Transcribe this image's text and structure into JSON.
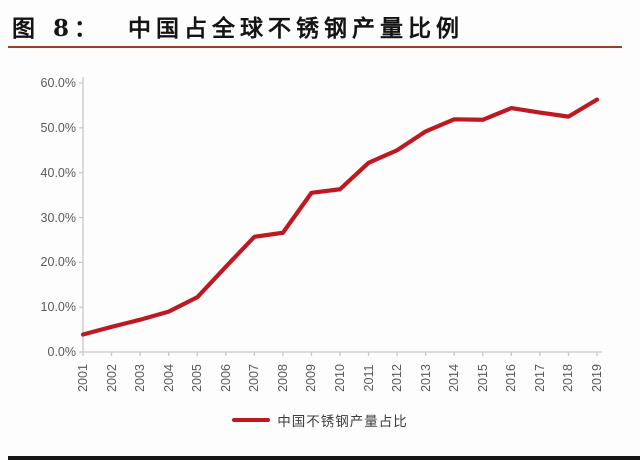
{
  "header": {
    "title": "图 8：  中国占全球不锈钢产量比例",
    "underline_color": "#a23b21"
  },
  "chart_data": {
    "type": "line",
    "title": "中国占全球不锈钢产量比例",
    "x": [
      "2001",
      "2002",
      "2003",
      "2004",
      "2005",
      "2006",
      "2007",
      "2008",
      "2009",
      "2010",
      "2011",
      "2012",
      "2013",
      "2014",
      "2015",
      "2016",
      "2017",
      "2018",
      "2019"
    ],
    "series": [
      {
        "name": "中国不锈钢产量占比",
        "color": "#c01820",
        "values": [
          3.9,
          5.6,
          7.2,
          9.0,
          12.2,
          19.0,
          25.7,
          26.6,
          35.5,
          36.3,
          42.2,
          45.0,
          49.2,
          51.9,
          51.8,
          54.4,
          53.4,
          52.5,
          56.3
        ]
      }
    ],
    "ylim": [
      0,
      60
    ],
    "ytick_step": 10,
    "ytick_labels": [
      "0.0%",
      "10.0%",
      "20.0%",
      "30.0%",
      "40.0%",
      "50.0%",
      "60.0%"
    ],
    "grid": false,
    "legend_position": "bottom",
    "axis_color": "#c8c8c8",
    "tick_label_color": "#595959"
  },
  "legend": {
    "label": "中国不锈钢产量占比",
    "marker_color": "#c01820"
  },
  "footer": {
    "bar_color": "#161616"
  }
}
